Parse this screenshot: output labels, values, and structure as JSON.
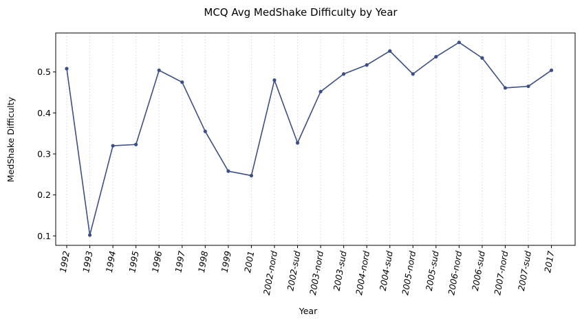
{
  "chart_data": {
    "type": "line",
    "title": "MCQ Avg MedShake Difficulty by Year",
    "xlabel": "Year",
    "ylabel": "MedShake Difficulty",
    "categories": [
      "1992",
      "1993",
      "1994",
      "1995",
      "1996",
      "1997",
      "1998",
      "1999",
      "2001",
      "2002-nord",
      "2002-sud",
      "2003-nord",
      "2003-sud",
      "2004-nord",
      "2004-sud",
      "2005-nord",
      "2005-sud",
      "2006-nord",
      "2006-sud",
      "2007-nord",
      "2007-sud",
      "2017"
    ],
    "values": [
      0.508,
      0.102,
      0.32,
      0.323,
      0.504,
      0.475,
      0.355,
      0.258,
      0.247,
      0.48,
      0.327,
      0.452,
      0.495,
      0.517,
      0.551,
      0.495,
      0.537,
      0.572,
      0.534,
      0.461,
      0.465,
      0.504
    ],
    "yticks": [
      0.1,
      0.2,
      0.3,
      0.4,
      0.5
    ],
    "ylim": [
      0.077,
      0.595
    ],
    "grid": "x-dotted",
    "color": "#3b4f86"
  }
}
